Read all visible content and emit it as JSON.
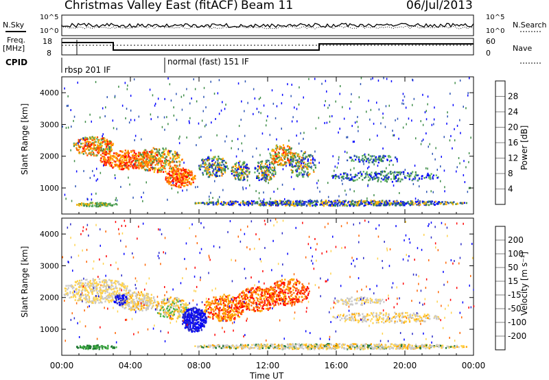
{
  "header": {
    "title": "Christmas Valley East (fitACF)",
    "beam": "Beam 11",
    "date": "06/Jul/2013"
  },
  "top_panels": {
    "nsky_label": "N.Sky",
    "nsearch_label": "N.Search",
    "nsky_ticks": [
      "10^5",
      "10^0"
    ],
    "freq_label_1": "Freq.",
    "freq_label_2": "[MHz]",
    "freq_ticks": [
      "18",
      "8"
    ],
    "nave_label": "Nave",
    "nave_ticks": [
      "60",
      "0"
    ],
    "cpid_label": "CPID",
    "cpid_1": "rbsp 201 IF",
    "cpid_2": "normal (fast) 151 IF"
  },
  "chart_data": [
    {
      "type": "heatmap",
      "title": "",
      "ylabel": "Slant Range [km]",
      "xlabel": "",
      "ylim": [
        180,
        4500
      ],
      "yticks": [
        "4000",
        "3000",
        "2000",
        "1000"
      ],
      "colorbar": {
        "label": "Power [dB]",
        "ticks": [
          "28",
          "24",
          "20",
          "16",
          "12",
          "8",
          "4"
        ],
        "colors": [
          "#0000ff",
          "#2a52b4",
          "#3c8c46",
          "#64b464",
          "#ffb400",
          "#ff8200",
          "#ff5000",
          "#ff0000"
        ]
      }
    },
    {
      "type": "heatmap",
      "title": "",
      "ylabel": "Slant Range [km]",
      "xlabel": "Time UT",
      "ylim": [
        180,
        4500
      ],
      "yticks": [
        "4000",
        "3000",
        "2000",
        "1000"
      ],
      "xticks": [
        "00:00",
        "04:00",
        "08:00",
        "12:00",
        "16:00",
        "20:00",
        "00:00"
      ],
      "colorbar": {
        "label": "Velocity [m s⁻¹]",
        "ticks": [
          "200",
          "100",
          "50",
          "15",
          "-15",
          "-50",
          "-100",
          "-200"
        ],
        "colors": [
          "#0000ff",
          "#2828c8",
          "#1e7832",
          "#46b446",
          "#c8c8c8",
          "#ffd24b",
          "#ffa500",
          "#ff6400",
          "#ff0000"
        ]
      }
    }
  ]
}
